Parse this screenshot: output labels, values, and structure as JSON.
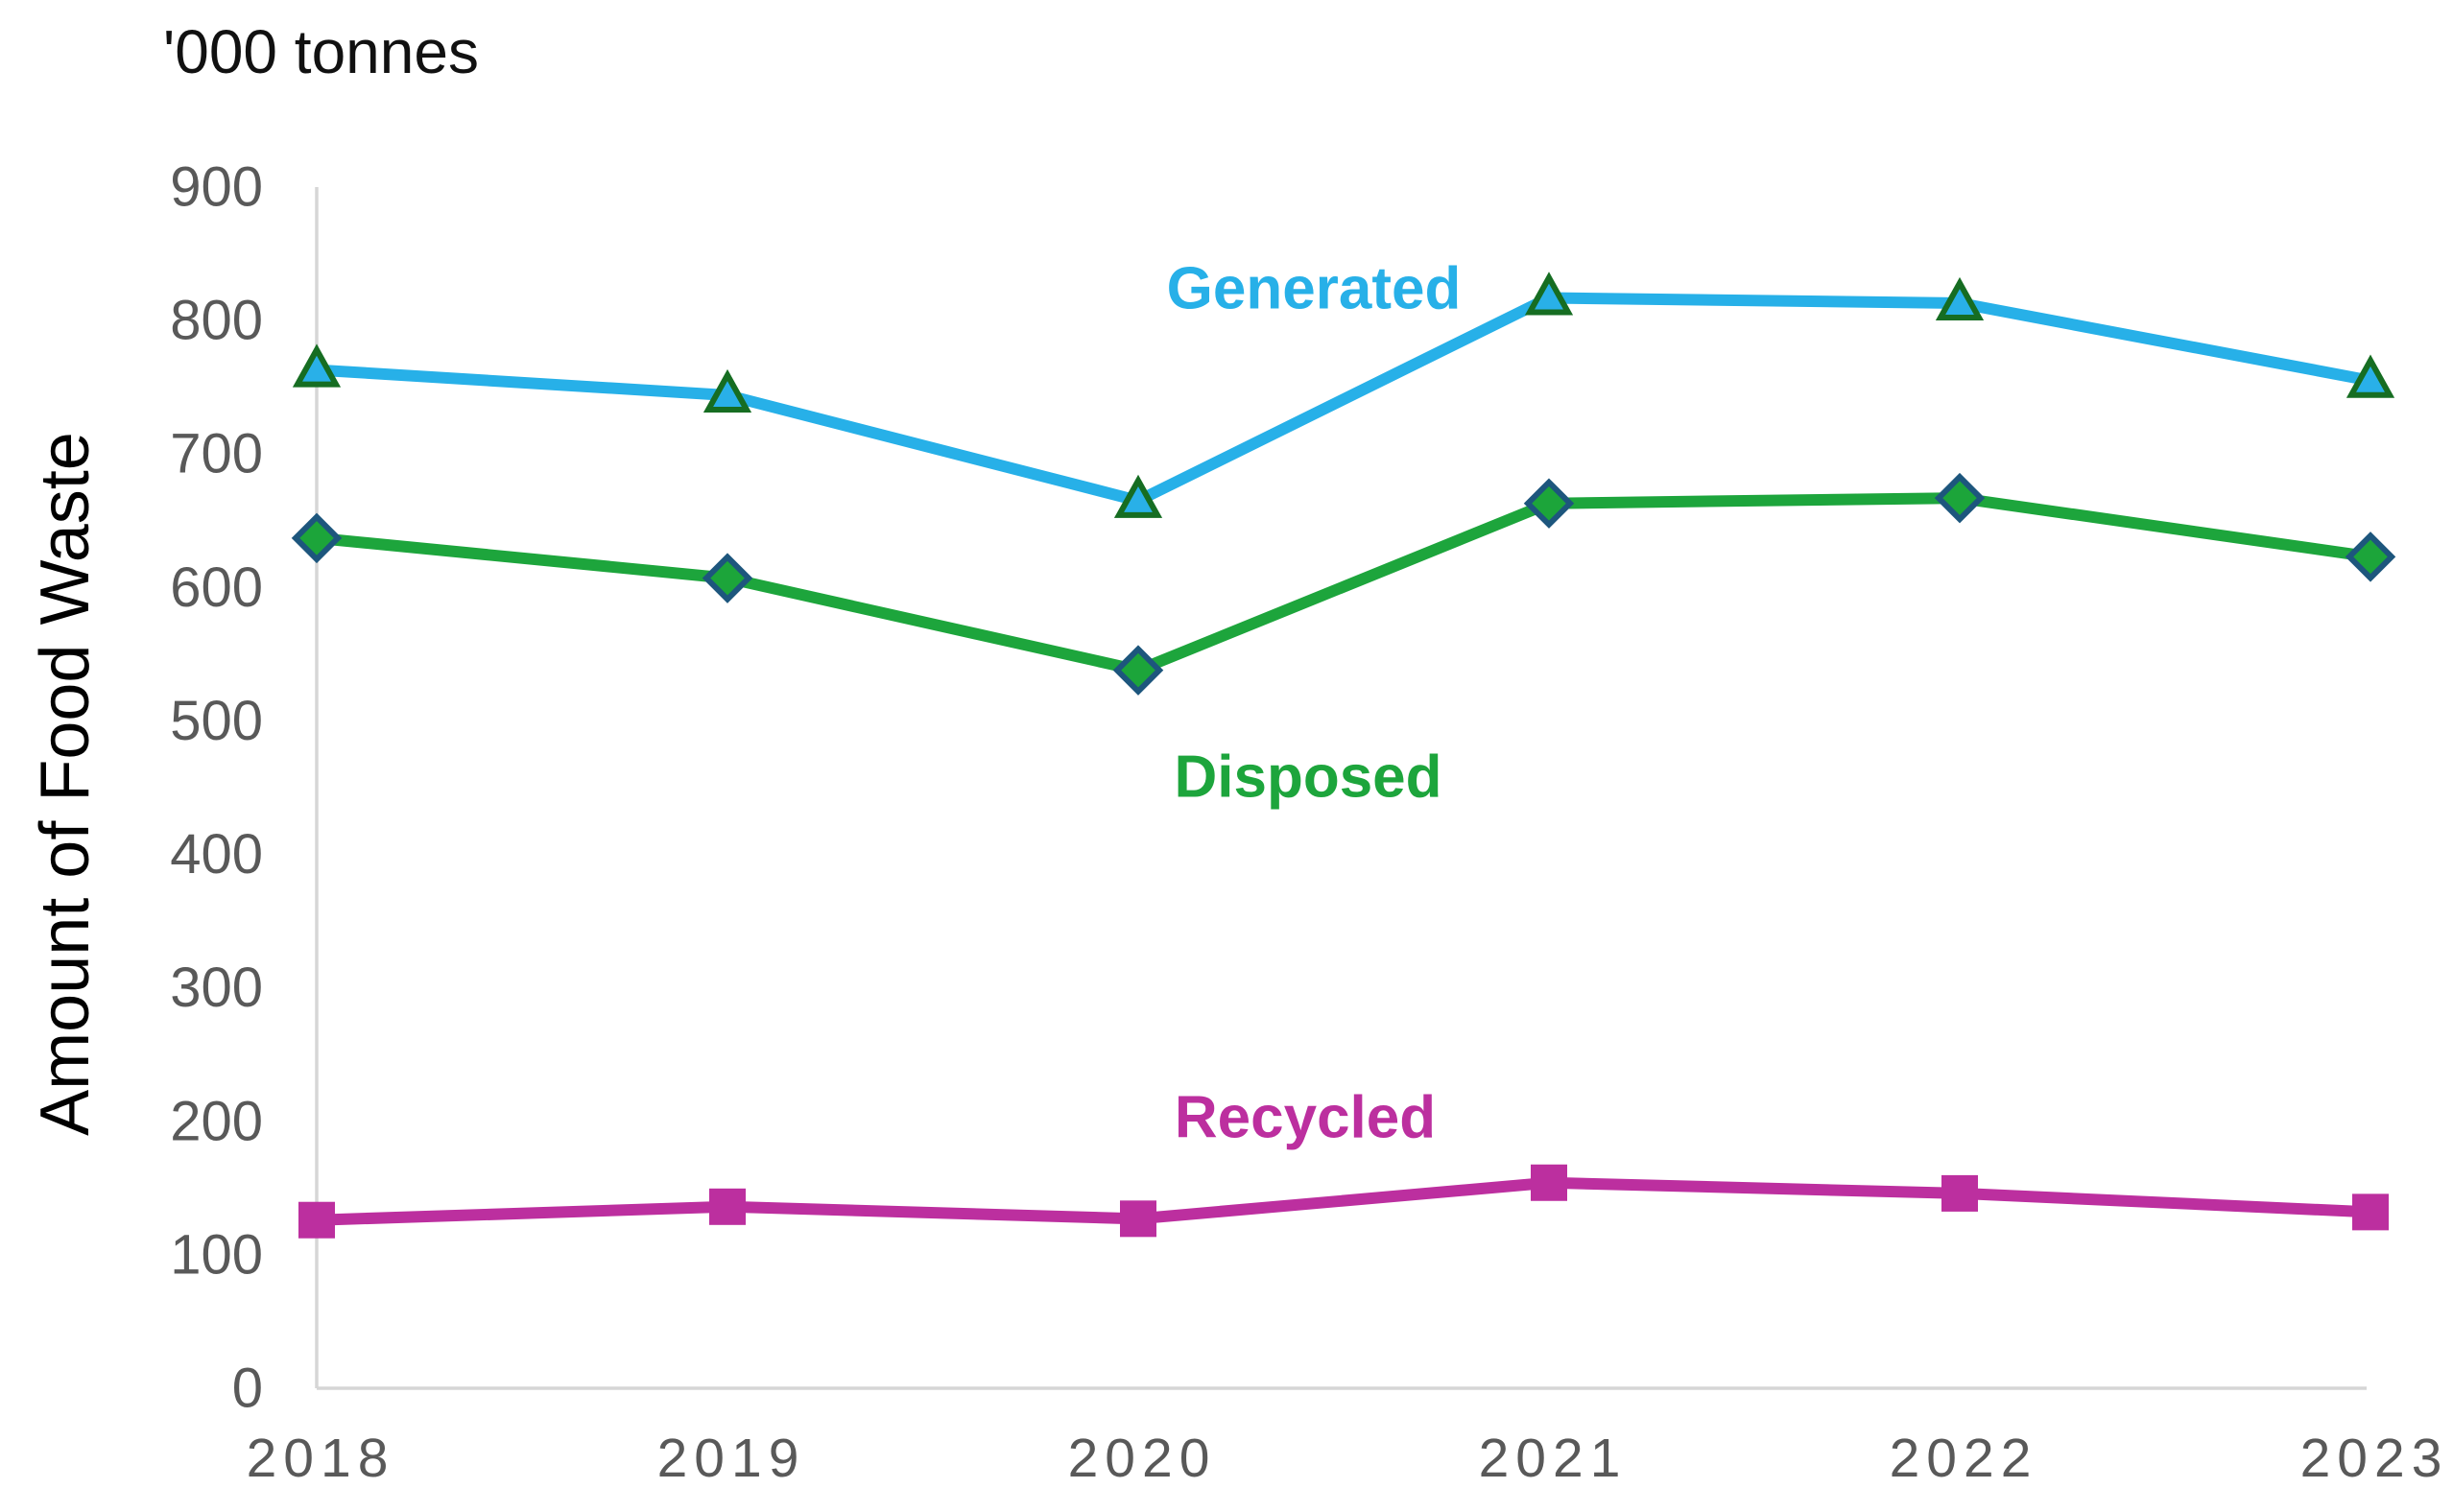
{
  "chart_data": {
    "type": "line",
    "title": "'000 tonnes",
    "ylabel": "Amount of Food Waste",
    "xlabel": "",
    "categories": [
      "2018",
      "2019",
      "2020",
      "2021",
      "2022",
      "2023"
    ],
    "series": [
      {
        "name": "Generated",
        "values": [
          763,
          744,
          665,
          817,
          813,
          755
        ],
        "color": "#27b0e8",
        "marker": "triangle",
        "marker_fill": "#29b0e8",
        "marker_stroke": "#166d22"
      },
      {
        "name": "Disposed",
        "values": [
          637,
          607,
          538,
          663,
          667,
          623
        ],
        "color": "#1da53c",
        "marker": "diamond",
        "marker_fill": "#1ca53a",
        "marker_stroke": "#1d567d"
      },
      {
        "name": "Recycled",
        "values": [
          126,
          136,
          127,
          154,
          146,
          132
        ],
        "color": "#bc2f9f",
        "marker": "square",
        "marker_fill": "#bc2f9f",
        "marker_stroke": "none"
      }
    ],
    "ylim": [
      0,
      900
    ],
    "ytick_step": 100,
    "yticks": [
      "0",
      "100",
      "200",
      "300",
      "400",
      "500",
      "600",
      "700",
      "800",
      "900"
    ],
    "grid": false,
    "legend": "inline-labels",
    "axis_color": "#d6d6d6",
    "tick_text_color": "#595959"
  }
}
